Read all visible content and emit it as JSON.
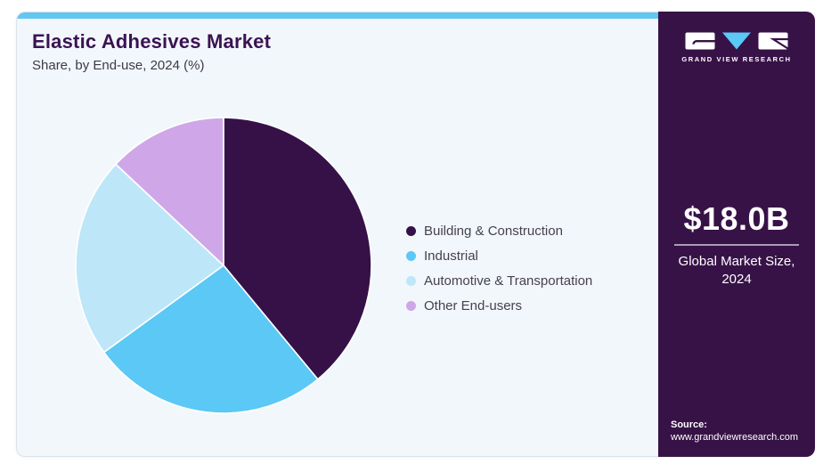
{
  "header": {
    "title": "Elastic Adhesives Market",
    "subtitle": "Share, by End-use, 2024 (%)"
  },
  "chart_data": {
    "type": "pie",
    "title": "Elastic Adhesives Market Share, by End-use, 2024 (%)",
    "categories": [
      "Building & Construction",
      "Industrial",
      "Automotive & Transportation",
      "Other End-users"
    ],
    "values": [
      39,
      26,
      22,
      13
    ],
    "unit": "percent_share",
    "colors": [
      "#361148",
      "#5BC8F5",
      "#BDE7F8",
      "#CFA7E8"
    ],
    "start_angle_deg": 0,
    "direction": "clockwise",
    "legend_position": "right",
    "slice_separator_color": "#FFFFFF"
  },
  "sidebar": {
    "brand": "GRAND VIEW RESEARCH",
    "market_size_value": "$18.0B",
    "market_size_label": "Global Market Size, 2024",
    "source_label": "Source:",
    "source_url": "www.grandviewresearch.com"
  },
  "colors": {
    "top_accent_bar": "#63C6F0",
    "card_background": "#F2F7FB",
    "sidebar_background": "#371247",
    "title_text": "#3A1353",
    "subtitle_text": "#3E3A47",
    "legend_text": "#46414E",
    "divider": "#A89EB5",
    "logo_triangle": "#5BC8F5"
  }
}
